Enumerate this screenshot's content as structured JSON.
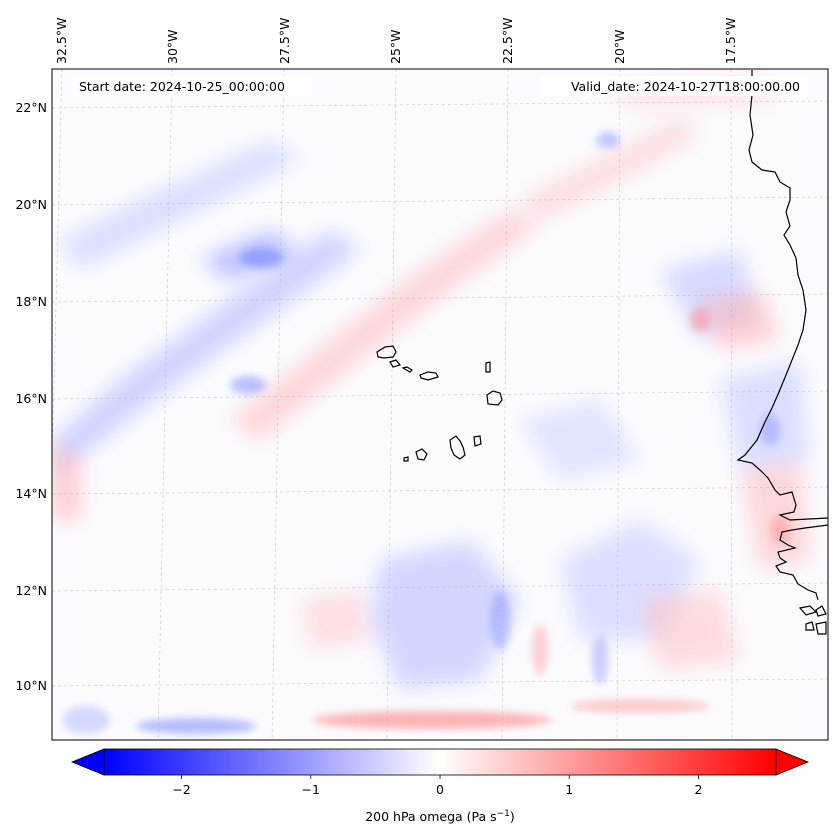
{
  "map": {
    "start_date": "Start date: 2024-10-25_00:00:00",
    "valid_date": "Valid_date: 2024-10-27T18:00:00.00",
    "lon_labels": [
      "32.5°W",
      "30°W",
      "27.5°W",
      "25°W",
      "22.5°W",
      "20°W",
      "17.5°W"
    ],
    "lat_labels": [
      "22°N",
      "20°N",
      "18°N",
      "16°N",
      "14°N",
      "12°N",
      "10°N"
    ],
    "field_colors": {
      "negative": "#0000ff",
      "zero": "#ffffff",
      "positive": "#ff0000"
    },
    "coastline_color": "#000000"
  },
  "colorbar": {
    "ticks": [
      "−2",
      "−1",
      "0",
      "1",
      "2"
    ],
    "tick_values": [
      -2,
      -1,
      0,
      1,
      2
    ],
    "range": [
      -2.6,
      2.6
    ],
    "label_main": "200 hPa omega (Pa s",
    "label_exp": "−1",
    "label_close": ")"
  }
}
